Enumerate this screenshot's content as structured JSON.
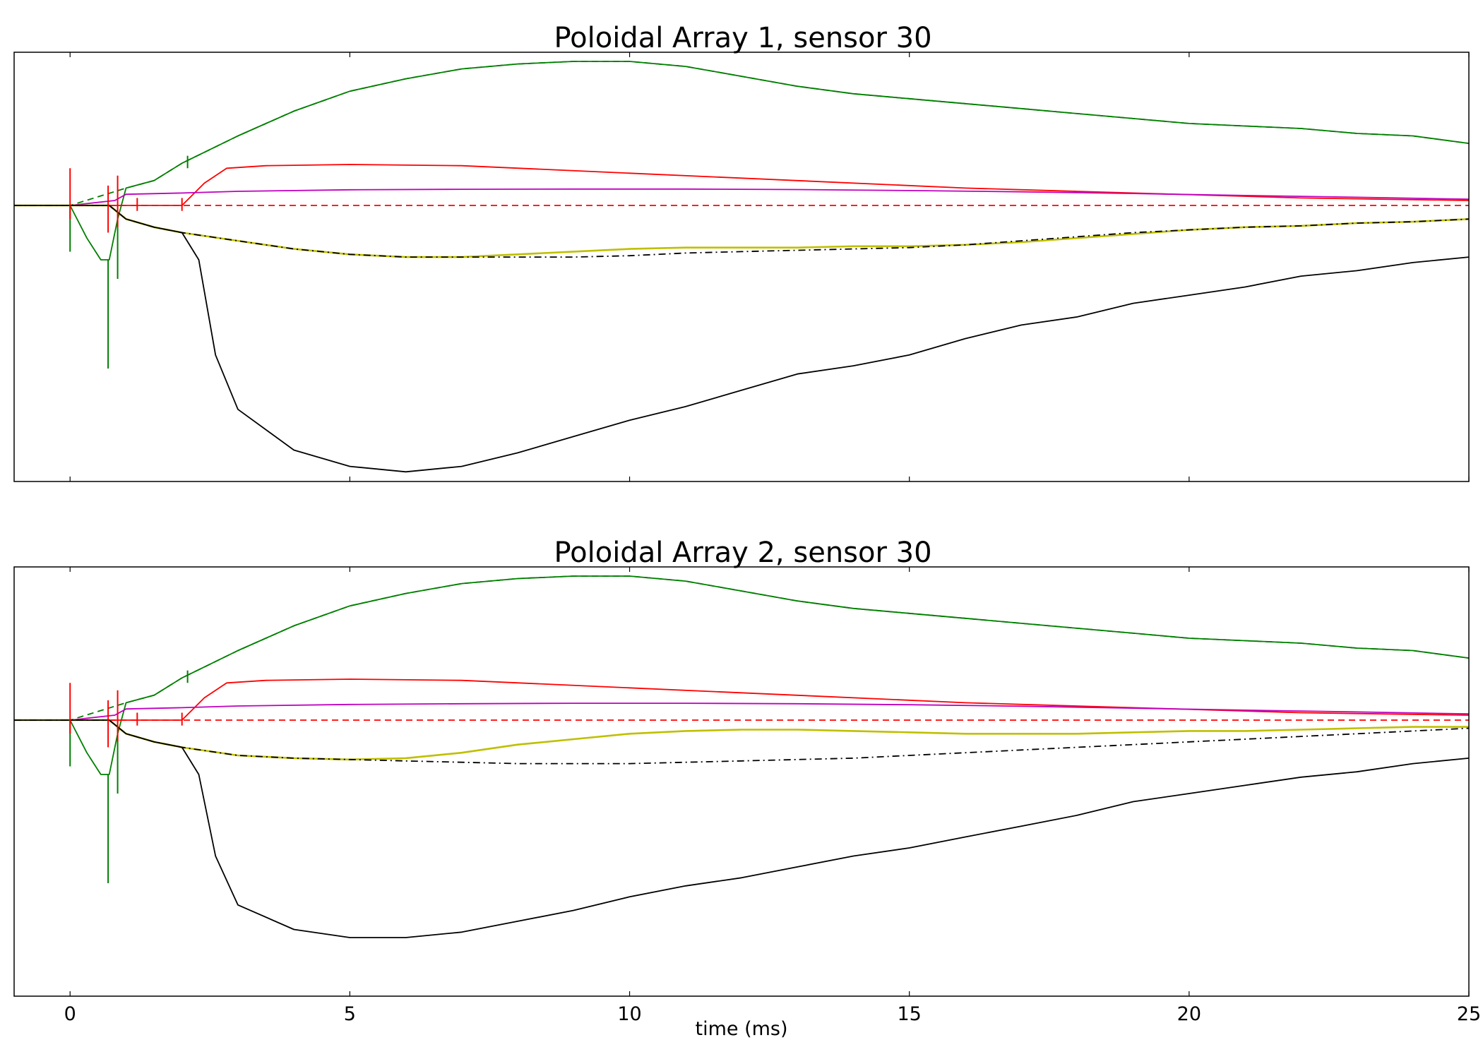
{
  "figure": {
    "xlabel": "time (ms)"
  },
  "colors": {
    "green": "#007f00",
    "red": "#ff0000",
    "magenta": "#bf00bf",
    "yellow": "#bfbf00",
    "black": "#000000"
  },
  "chart_data": [
    {
      "type": "line",
      "title": "Poloidal Array 1, sensor 30",
      "xlabel": "",
      "ylabel": "",
      "xlim": [
        -1,
        25
      ],
      "ylim": [
        -1.0,
        0.6
      ],
      "x_ticks": [
        0,
        5,
        10,
        15,
        20,
        25
      ],
      "show_x_tick_labels": false,
      "grid": false,
      "legend": "none",
      "series": [
        {
          "color": "green",
          "style": "solid",
          "x": [
            -1,
            0,
            0.3,
            0.55,
            0.7,
            0.85,
            1,
            1.5,
            2,
            3,
            4,
            5,
            6,
            7,
            8,
            9,
            10,
            11,
            12,
            13,
            14,
            15,
            16,
            17,
            18,
            19,
            20,
            21,
            22,
            23,
            24,
            25
          ],
          "y": [
            0,
            0,
            -0.12,
            -0.2,
            -0.2,
            -0.05,
            0.07,
            0.1,
            0.17,
            0.28,
            0.38,
            0.46,
            0.51,
            0.55,
            0.57,
            0.58,
            0.58,
            0.56,
            0.52,
            0.48,
            0.45,
            0.43,
            0.41,
            0.39,
            0.37,
            0.35,
            0.33,
            0.32,
            0.31,
            0.29,
            0.28,
            0.25
          ]
        },
        {
          "color": "green",
          "style": "dashed",
          "x": [
            -1,
            0,
            1,
            1.5,
            2,
            3,
            4,
            5,
            6,
            7,
            8,
            9,
            10,
            11,
            12,
            13,
            14,
            15,
            16,
            17,
            18,
            19,
            20,
            21,
            22,
            23,
            24,
            25
          ],
          "y": [
            0,
            0,
            0.07,
            0.1,
            0.17,
            0.28,
            0.38,
            0.46,
            0.51,
            0.55,
            0.57,
            0.58,
            0.58,
            0.56,
            0.52,
            0.48,
            0.45,
            0.43,
            0.41,
            0.39,
            0.37,
            0.35,
            0.33,
            0.32,
            0.31,
            0.29,
            0.28,
            0.25
          ]
        },
        {
          "color": "red",
          "style": "solid",
          "x": [
            -1,
            0,
            1,
            2,
            2.4,
            2.8,
            3.5,
            5,
            7,
            10,
            13,
            16,
            19,
            22,
            25
          ],
          "y": [
            0,
            0,
            0,
            0,
            0.09,
            0.15,
            0.16,
            0.165,
            0.16,
            0.13,
            0.1,
            0.07,
            0.05,
            0.03,
            0.02
          ]
        },
        {
          "color": "red",
          "style": "dashed",
          "x": [
            -1,
            25
          ],
          "y": [
            0,
            0
          ]
        },
        {
          "color": "magenta",
          "style": "solid",
          "x": [
            -1,
            0,
            0.8,
            1,
            2,
            3,
            5,
            7,
            9,
            11,
            13,
            15,
            17,
            19,
            21,
            23,
            25
          ],
          "y": [
            0,
            0,
            0.02,
            0.045,
            0.05,
            0.057,
            0.063,
            0.065,
            0.066,
            0.066,
            0.064,
            0.06,
            0.055,
            0.048,
            0.04,
            0.033,
            0.025
          ]
        },
        {
          "color": "yellow",
          "style": "solid",
          "x": [
            -1,
            0,
            0.7,
            1,
            1.5,
            2,
            3,
            4,
            5,
            6,
            7,
            8,
            9,
            10,
            11,
            12,
            13,
            14,
            15,
            16,
            17,
            18,
            19,
            20,
            21,
            22,
            23,
            24,
            25
          ],
          "y": [
            0,
            0,
            0,
            -0.05,
            -0.08,
            -0.1,
            -0.13,
            -0.16,
            -0.18,
            -0.19,
            -0.19,
            -0.18,
            -0.17,
            -0.16,
            -0.155,
            -0.155,
            -0.155,
            -0.15,
            -0.15,
            -0.145,
            -0.135,
            -0.12,
            -0.105,
            -0.09,
            -0.08,
            -0.075,
            -0.065,
            -0.06,
            -0.05
          ]
        },
        {
          "color": "black",
          "style": "dashdot",
          "x": [
            -1,
            0,
            0.7,
            1,
            1.5,
            2,
            3,
            4,
            5,
            6,
            7,
            8,
            9,
            10,
            11,
            12,
            13,
            14,
            15,
            16,
            17,
            18,
            19,
            20,
            21,
            22,
            23,
            24,
            25
          ],
          "y": [
            0,
            0,
            0,
            -0.05,
            -0.08,
            -0.1,
            -0.13,
            -0.16,
            -0.18,
            -0.19,
            -0.19,
            -0.19,
            -0.19,
            -0.185,
            -0.175,
            -0.17,
            -0.165,
            -0.16,
            -0.155,
            -0.145,
            -0.13,
            -0.115,
            -0.1,
            -0.09,
            -0.08,
            -0.075,
            -0.065,
            -0.06,
            -0.05
          ]
        },
        {
          "color": "black",
          "style": "solid",
          "x": [
            -1,
            0,
            0.7,
            1,
            1.5,
            2,
            2.3,
            2.6,
            3,
            4,
            5,
            6,
            7,
            8,
            9,
            10,
            11,
            12,
            13,
            14,
            15,
            16,
            17,
            18,
            19,
            20,
            21,
            22,
            23,
            24,
            25
          ],
          "y": [
            0,
            0,
            0,
            -0.05,
            -0.08,
            -0.1,
            -0.2,
            -0.55,
            -0.75,
            -0.9,
            -0.96,
            -0.98,
            -0.96,
            -0.91,
            -0.85,
            -0.79,
            -0.74,
            -0.68,
            -0.62,
            -0.59,
            -0.55,
            -0.49,
            -0.44,
            -0.41,
            -0.36,
            -0.33,
            -0.3,
            -0.26,
            -0.24,
            -0.21,
            -0.19
          ]
        }
      ],
      "spikes": [
        {
          "color": "green",
          "x": 0,
          "y0": 0,
          "y1": -0.17
        },
        {
          "color": "green",
          "x": 0.68,
          "y0": -0.2,
          "y1": -0.6
        },
        {
          "color": "green",
          "x": 0.85,
          "y0": -0.05,
          "y1": -0.27
        },
        {
          "color": "red",
          "x": 0,
          "y0": -0.05,
          "y1": 0.15
        },
        {
          "color": "red",
          "x": 0.68,
          "y0": -0.1,
          "y1": 0.08
        },
        {
          "color": "red",
          "x": 0.85,
          "y0": -0.08,
          "y1": 0.12
        },
        {
          "color": "red",
          "x": 1.2,
          "y0": -0.02,
          "y1": 0.03
        },
        {
          "color": "red",
          "x": 2,
          "y0": -0.02,
          "y1": 0.03
        },
        {
          "color": "green",
          "x": 2.1,
          "y0": 0.15,
          "y1": 0.2
        }
      ]
    },
    {
      "type": "line",
      "title": "Poloidal Array 2, sensor 30",
      "xlabel": "time (ms)",
      "ylabel": "",
      "xlim": [
        -1,
        25
      ],
      "ylim": [
        -1.0,
        0.6
      ],
      "x_ticks": [
        0,
        5,
        10,
        15,
        20,
        25
      ],
      "x_tick_labels": [
        "0",
        "5",
        "10",
        "15",
        "20",
        "25"
      ],
      "grid": false,
      "legend": "none",
      "series": [
        {
          "color": "green",
          "style": "solid",
          "x": [
            -1,
            0,
            0.3,
            0.55,
            0.7,
            0.85,
            1,
            1.5,
            2,
            3,
            4,
            5,
            6,
            7,
            8,
            9,
            10,
            11,
            12,
            13,
            14,
            15,
            16,
            17,
            18,
            19,
            20,
            21,
            22,
            23,
            24,
            25
          ],
          "y": [
            0,
            0,
            -0.12,
            -0.2,
            -0.2,
            -0.05,
            0.07,
            0.1,
            0.17,
            0.28,
            0.38,
            0.46,
            0.51,
            0.55,
            0.57,
            0.58,
            0.58,
            0.56,
            0.52,
            0.48,
            0.45,
            0.43,
            0.41,
            0.39,
            0.37,
            0.35,
            0.33,
            0.32,
            0.31,
            0.29,
            0.28,
            0.25
          ]
        },
        {
          "color": "green",
          "style": "dashed",
          "x": [
            -1,
            0,
            1,
            1.5,
            2,
            3,
            4,
            5,
            6,
            7,
            8,
            9,
            10,
            11,
            12,
            13,
            14,
            15,
            16,
            17,
            18,
            19,
            20,
            21,
            22,
            23,
            24,
            25
          ],
          "y": [
            0,
            0,
            0.07,
            0.1,
            0.17,
            0.28,
            0.38,
            0.46,
            0.51,
            0.55,
            0.57,
            0.58,
            0.58,
            0.56,
            0.52,
            0.48,
            0.45,
            0.43,
            0.41,
            0.39,
            0.37,
            0.35,
            0.33,
            0.32,
            0.31,
            0.29,
            0.28,
            0.25
          ]
        },
        {
          "color": "red",
          "style": "solid",
          "x": [
            -1,
            0,
            1,
            2,
            2.4,
            2.8,
            3.5,
            5,
            7,
            10,
            13,
            16,
            19,
            22,
            25
          ],
          "y": [
            0,
            0,
            0,
            0,
            0.09,
            0.15,
            0.16,
            0.165,
            0.16,
            0.13,
            0.1,
            0.07,
            0.05,
            0.03,
            0.02
          ]
        },
        {
          "color": "red",
          "style": "dashed",
          "x": [
            -1,
            25
          ],
          "y": [
            0,
            0
          ]
        },
        {
          "color": "magenta",
          "style": "solid",
          "x": [
            -1,
            0,
            0.8,
            1,
            2,
            3,
            5,
            7,
            9,
            11,
            13,
            15,
            17,
            19,
            21,
            23,
            25
          ],
          "y": [
            0,
            0,
            0.02,
            0.045,
            0.05,
            0.057,
            0.063,
            0.066,
            0.068,
            0.068,
            0.066,
            0.062,
            0.056,
            0.048,
            0.04,
            0.033,
            0.025
          ]
        },
        {
          "color": "yellow",
          "style": "solid",
          "x": [
            -1,
            0,
            0.7,
            1,
            1.5,
            2,
            3,
            4,
            5,
            6,
            7,
            8,
            9,
            10,
            11,
            12,
            13,
            14,
            15,
            16,
            17,
            18,
            19,
            20,
            21,
            22,
            23,
            24,
            25
          ],
          "y": [
            0,
            0,
            0,
            -0.05,
            -0.08,
            -0.1,
            -0.13,
            -0.14,
            -0.145,
            -0.14,
            -0.12,
            -0.09,
            -0.07,
            -0.05,
            -0.04,
            -0.035,
            -0.035,
            -0.04,
            -0.045,
            -0.05,
            -0.05,
            -0.05,
            -0.045,
            -0.04,
            -0.04,
            -0.035,
            -0.03,
            -0.025,
            -0.025
          ]
        },
        {
          "color": "black",
          "style": "dashdot",
          "x": [
            -1,
            0,
            0.7,
            1,
            1.5,
            2,
            3,
            4,
            5,
            6,
            7,
            8,
            9,
            10,
            11,
            12,
            13,
            14,
            15,
            16,
            17,
            18,
            19,
            20,
            21,
            22,
            23,
            24,
            25
          ],
          "y": [
            0,
            0,
            0,
            -0.05,
            -0.08,
            -0.1,
            -0.13,
            -0.14,
            -0.145,
            -0.15,
            -0.155,
            -0.16,
            -0.16,
            -0.16,
            -0.155,
            -0.15,
            -0.145,
            -0.14,
            -0.13,
            -0.12,
            -0.11,
            -0.1,
            -0.09,
            -0.08,
            -0.07,
            -0.06,
            -0.05,
            -0.04,
            -0.03
          ]
        },
        {
          "color": "black",
          "style": "solid",
          "x": [
            -1,
            0,
            0.7,
            1,
            1.5,
            2,
            2.3,
            2.6,
            3,
            4,
            5,
            6,
            7,
            8,
            9,
            10,
            11,
            12,
            13,
            14,
            15,
            16,
            17,
            18,
            19,
            20,
            21,
            22,
            23,
            24,
            25
          ],
          "y": [
            0,
            0,
            0,
            -0.05,
            -0.08,
            -0.1,
            -0.2,
            -0.5,
            -0.68,
            -0.77,
            -0.8,
            -0.8,
            -0.78,
            -0.74,
            -0.7,
            -0.65,
            -0.61,
            -0.58,
            -0.54,
            -0.5,
            -0.47,
            -0.43,
            -0.39,
            -0.35,
            -0.3,
            -0.27,
            -0.24,
            -0.21,
            -0.19,
            -0.16,
            -0.14
          ]
        }
      ],
      "spikes": [
        {
          "color": "green",
          "x": 0,
          "y0": 0,
          "y1": -0.17
        },
        {
          "color": "green",
          "x": 0.68,
          "y0": -0.2,
          "y1": -0.6
        },
        {
          "color": "green",
          "x": 0.85,
          "y0": -0.05,
          "y1": -0.27
        },
        {
          "color": "red",
          "x": 0,
          "y0": -0.05,
          "y1": 0.15
        },
        {
          "color": "red",
          "x": 0.68,
          "y0": -0.1,
          "y1": 0.08
        },
        {
          "color": "red",
          "x": 0.85,
          "y0": -0.08,
          "y1": 0.12
        },
        {
          "color": "red",
          "x": 1.2,
          "y0": -0.02,
          "y1": 0.03
        },
        {
          "color": "red",
          "x": 2,
          "y0": -0.02,
          "y1": 0.03
        },
        {
          "color": "green",
          "x": 2.1,
          "y0": 0.15,
          "y1": 0.2
        }
      ]
    }
  ]
}
